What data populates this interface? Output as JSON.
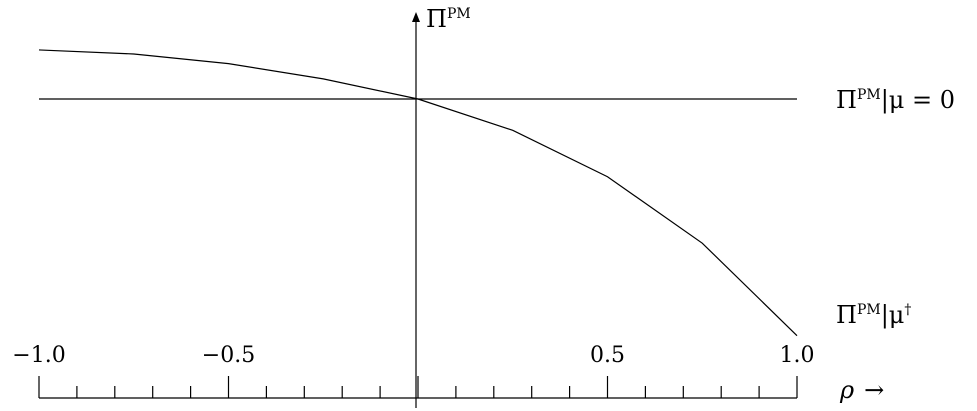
{
  "chart_data": {
    "type": "line",
    "xlim": [
      -1.0,
      1.0
    ],
    "x_tick_labels": [
      "−1.0",
      "−0.5",
      "0.5",
      "1.0"
    ],
    "x_tick_values": [
      -1.0,
      -0.5,
      0.5,
      1.0
    ],
    "minor_tick_step": 0.1,
    "y_axis_label": {
      "base": "Π",
      "sup": "PM"
    },
    "x_axis_label": {
      "main": "ρ",
      "arrow": "→"
    },
    "series": [
      {
        "label_base": "Π",
        "label_sup": "PM",
        "label_rest": "|μ = 0",
        "x": [
          -1.0,
          1.0
        ],
        "y": [
          0.0,
          0.0
        ]
      },
      {
        "label_base": "Π",
        "label_sup": "PM",
        "label_rest": "|μ",
        "label_rest_sup": "†",
        "x": [
          -1.0,
          -0.75,
          -0.5,
          -0.25,
          0.0,
          0.25,
          0.5,
          0.75,
          1.0
        ],
        "y": [
          0.183,
          0.168,
          0.132,
          0.075,
          0.0,
          -0.117,
          -0.29,
          -0.538,
          -0.883
        ]
      }
    ],
    "grid": false
  }
}
